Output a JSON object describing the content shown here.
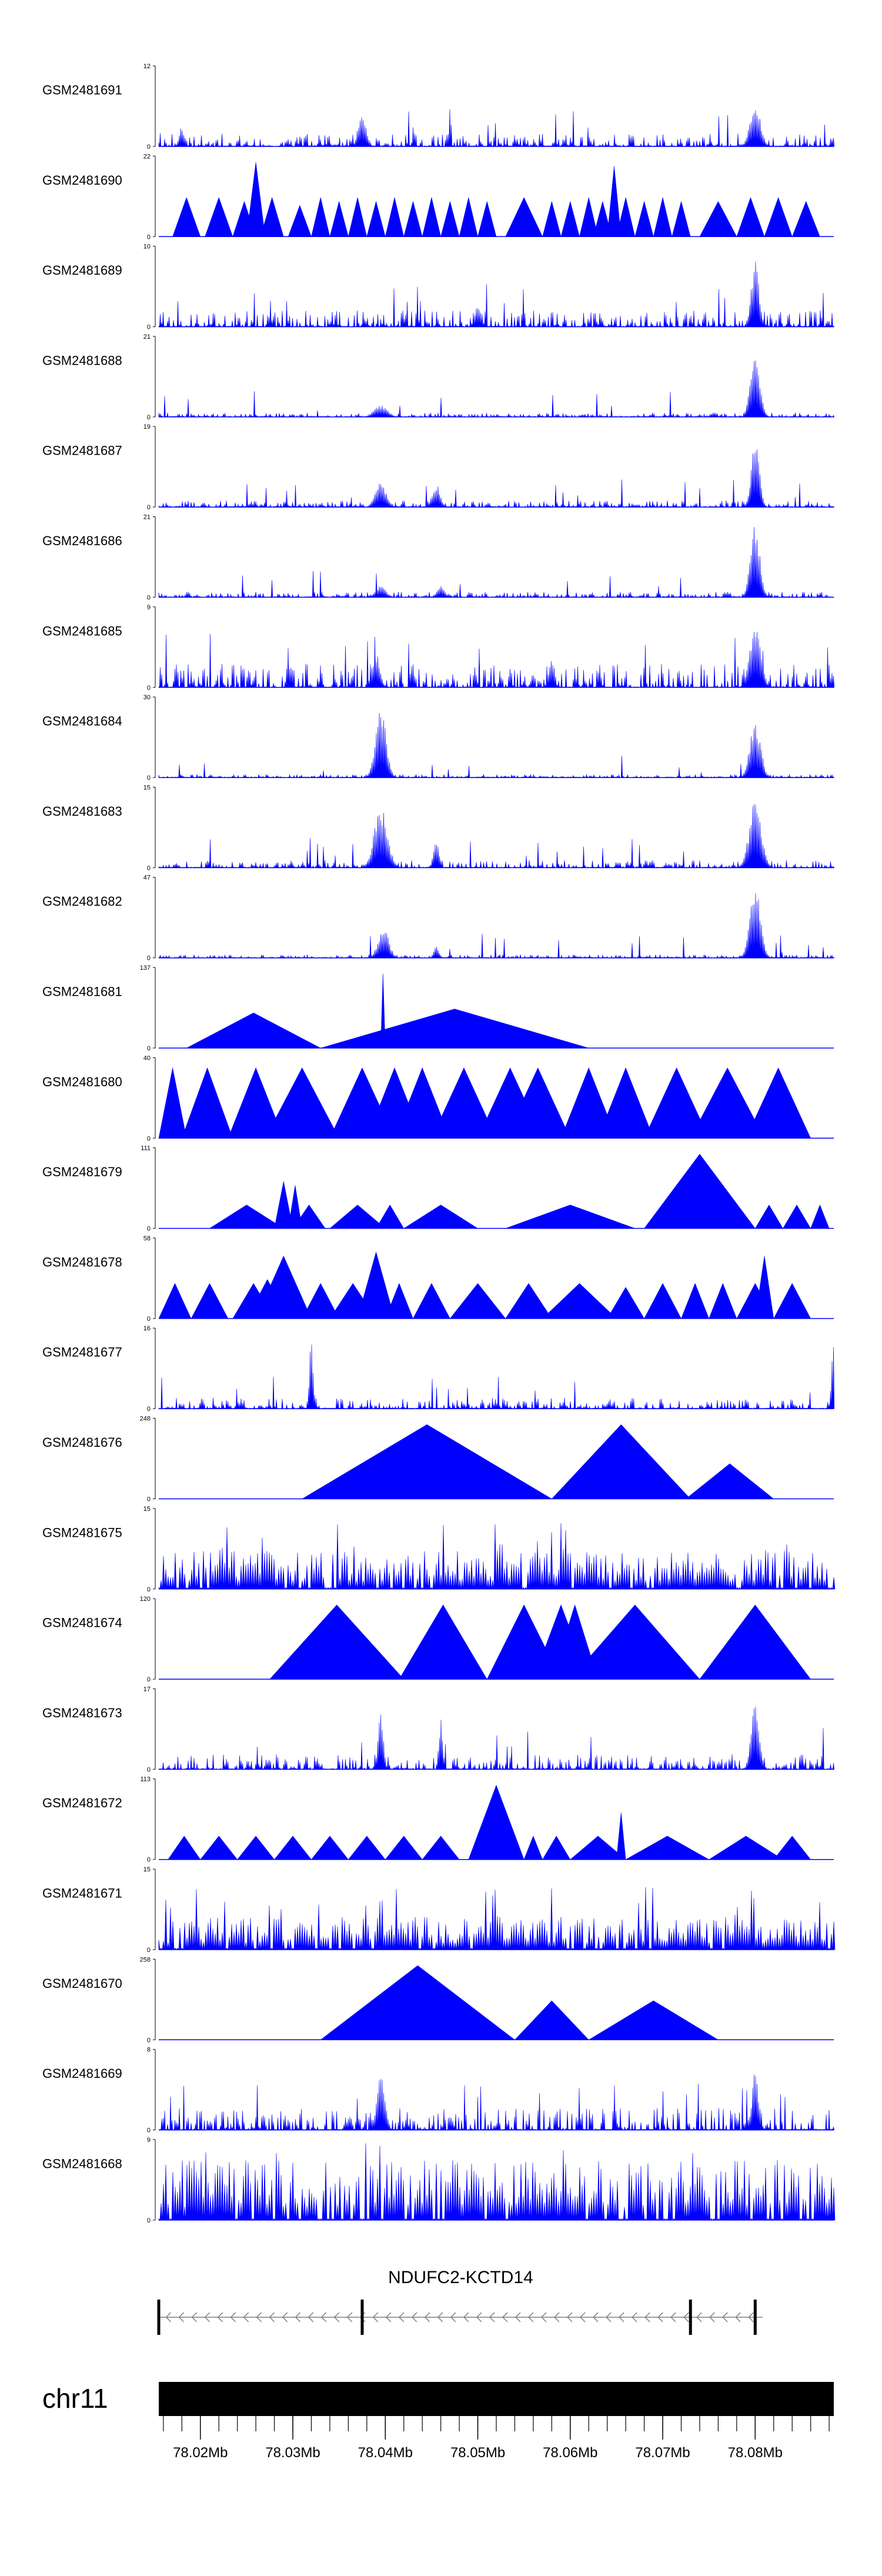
{
  "chart_data": {
    "type": "area",
    "title": "",
    "chromosome": "chr11",
    "xlabel": "",
    "ylabel": "",
    "x_range_mb": [
      78.0155,
      78.0885
    ],
    "x_ticks_mb": [
      78.02,
      78.03,
      78.04,
      78.05,
      78.06,
      78.07,
      78.08
    ],
    "x_tick_labels": [
      "78.02Mb",
      "78.03Mb",
      "78.04Mb",
      "78.05Mb",
      "78.06Mb",
      "78.07Mb",
      "78.08Mb"
    ],
    "minor_tick_step_mb": 0.002,
    "color": "#0000ff",
    "gene": {
      "name": "NDUFC2-KCTD14",
      "strand": "-",
      "start_mb": 78.0155,
      "end_mb": 78.0808,
      "exons_mb": [
        78.0155,
        78.0375,
        78.073,
        78.08
      ]
    },
    "tracks": [
      {
        "name": "GSM2481691",
        "ymax": 12,
        "pattern": "noise",
        "base": 0.12,
        "seed": 11,
        "peaks": [
          [
            78.0375,
            0.45,
            0.0006
          ],
          [
            78.08,
            0.55,
            0.0008
          ],
          [
            78.018,
            0.25,
            0.0004
          ]
        ]
      },
      {
        "name": "GSM2481690",
        "ymax": 22,
        "pattern": "tri",
        "seed": 12,
        "triangles": [
          [
            78.017,
            78.02,
            0.5
          ],
          [
            78.0205,
            78.0235,
            0.5
          ],
          [
            78.0235,
            78.026,
            0.45
          ],
          [
            78.025,
            78.027,
            0.95
          ],
          [
            78.0265,
            78.029,
            0.5
          ],
          [
            78.0295,
            78.032,
            0.4
          ],
          [
            78.032,
            78.034,
            0.5
          ],
          [
            78.034,
            78.036,
            0.45
          ],
          [
            78.036,
            78.038,
            0.5
          ],
          [
            78.038,
            78.04,
            0.45
          ],
          [
            78.04,
            78.042,
            0.5
          ],
          [
            78.042,
            78.044,
            0.45
          ],
          [
            78.044,
            78.046,
            0.5
          ],
          [
            78.046,
            78.048,
            0.45
          ],
          [
            78.048,
            78.05,
            0.5
          ],
          [
            78.05,
            78.052,
            0.45
          ],
          [
            78.053,
            78.057,
            0.5
          ],
          [
            78.057,
            78.059,
            0.45
          ],
          [
            78.059,
            78.061,
            0.45
          ],
          [
            78.061,
            78.063,
            0.5
          ],
          [
            78.0625,
            78.0645,
            0.45
          ],
          [
            78.064,
            78.0655,
            0.9
          ],
          [
            78.065,
            78.067,
            0.5
          ],
          [
            78.067,
            78.069,
            0.45
          ],
          [
            78.069,
            78.071,
            0.5
          ],
          [
            78.071,
            78.073,
            0.45
          ],
          [
            78.074,
            78.078,
            0.45
          ],
          [
            78.078,
            78.081,
            0.5
          ],
          [
            78.081,
            78.084,
            0.5
          ],
          [
            78.084,
            78.087,
            0.45
          ]
        ]
      },
      {
        "name": "GSM2481689",
        "ymax": 10,
        "pattern": "noise",
        "base": 0.15,
        "seed": 13,
        "peaks": [
          [
            78.08,
            0.85,
            0.0006
          ],
          [
            78.05,
            0.3,
            0.0005
          ]
        ]
      },
      {
        "name": "GSM2481688",
        "ymax": 21,
        "pattern": "noise",
        "base": 0.04,
        "seed": 14,
        "peaks": [
          [
            78.08,
            0.9,
            0.0007
          ],
          [
            78.0395,
            0.15,
            0.001
          ]
        ]
      },
      {
        "name": "GSM2481687",
        "ymax": 19,
        "pattern": "noise",
        "base": 0.06,
        "seed": 15,
        "peaks": [
          [
            78.08,
            0.9,
            0.0006
          ],
          [
            78.0395,
            0.35,
            0.0008
          ],
          [
            78.0455,
            0.3,
            0.0006
          ]
        ]
      },
      {
        "name": "GSM2481686",
        "ymax": 21,
        "pattern": "noise",
        "base": 0.05,
        "seed": 16,
        "peaks": [
          [
            78.08,
            0.95,
            0.0007
          ],
          [
            78.0395,
            0.15,
            0.0008
          ],
          [
            78.046,
            0.15,
            0.0006
          ]
        ]
      },
      {
        "name": "GSM2481685",
        "ymax": 9,
        "pattern": "noise",
        "base": 0.22,
        "seed": 17,
        "peaks": [
          [
            78.08,
            0.85,
            0.0008
          ],
          [
            78.039,
            0.45,
            0.0006
          ],
          [
            78.058,
            0.4,
            0.0004
          ]
        ]
      },
      {
        "name": "GSM2481684",
        "ymax": 30,
        "pattern": "noise",
        "base": 0.03,
        "seed": 18,
        "peaks": [
          [
            78.0395,
            0.95,
            0.0008
          ],
          [
            78.08,
            0.75,
            0.0008
          ]
        ]
      },
      {
        "name": "GSM2481683",
        "ymax": 15,
        "pattern": "noise",
        "base": 0.07,
        "seed": 19,
        "peaks": [
          [
            78.0395,
            0.8,
            0.001
          ],
          [
            78.08,
            0.9,
            0.0009
          ],
          [
            78.0455,
            0.4,
            0.0004
          ]
        ]
      },
      {
        "name": "GSM2481682",
        "ymax": 47,
        "pattern": "noise",
        "base": 0.03,
        "seed": 20,
        "peaks": [
          [
            78.08,
            0.95,
            0.0008
          ],
          [
            78.0398,
            0.4,
            0.0008
          ],
          [
            78.0455,
            0.15,
            0.0004
          ]
        ]
      },
      {
        "name": "GSM2481681",
        "ymax": 137,
        "pattern": "tri",
        "seed": 21,
        "triangles": [
          [
            78.0185,
            78.033,
            0.45
          ],
          [
            78.033,
            78.062,
            0.5
          ],
          [
            78.0395,
            78.04,
            0.95
          ]
        ]
      },
      {
        "name": "GSM2481680",
        "ymax": 40,
        "pattern": "tri",
        "seed": 22,
        "triangles": [
          [
            78.0155,
            78.0185,
            0.9
          ],
          [
            78.018,
            78.0235,
            0.9
          ],
          [
            78.023,
            78.029,
            0.9
          ],
          [
            78.027,
            78.035,
            0.9
          ],
          [
            78.034,
            78.041,
            0.9
          ],
          [
            78.038,
            78.044,
            0.9
          ],
          [
            78.041,
            78.047,
            0.9
          ],
          [
            78.045,
            78.052,
            0.9
          ],
          [
            78.05,
            78.057,
            0.9
          ],
          [
            78.053,
            78.06,
            0.9
          ],
          [
            78.059,
            78.065,
            0.9
          ],
          [
            78.063,
            78.069,
            0.9
          ],
          [
            78.068,
            78.075,
            0.9
          ],
          [
            78.073,
            78.081,
            0.9
          ],
          [
            78.079,
            78.086,
            0.9
          ]
        ]
      },
      {
        "name": "GSM2481679",
        "ymax": 111,
        "pattern": "tri",
        "seed": 23,
        "triangles": [
          [
            78.021,
            78.029,
            0.3
          ],
          [
            78.028,
            78.03,
            0.6
          ],
          [
            78.0295,
            78.031,
            0.55
          ],
          [
            78.03,
            78.0335,
            0.3
          ],
          [
            78.034,
            78.04,
            0.3
          ],
          [
            78.039,
            78.042,
            0.3
          ],
          [
            78.042,
            78.05,
            0.3
          ],
          [
            78.053,
            78.067,
            0.3
          ],
          [
            78.068,
            78.08,
            0.95
          ],
          [
            78.08,
            78.083,
            0.3
          ],
          [
            78.083,
            78.086,
            0.3
          ],
          [
            78.086,
            78.088,
            0.3
          ]
        ]
      },
      {
        "name": "GSM2481678",
        "ymax": 58,
        "pattern": "tri",
        "seed": 24,
        "triangles": [
          [
            78.0155,
            78.019,
            0.45
          ],
          [
            78.019,
            78.023,
            0.45
          ],
          [
            78.0235,
            78.028,
            0.45
          ],
          [
            78.025,
            78.0295,
            0.5
          ],
          [
            78.026,
            78.032,
            0.8
          ],
          [
            78.031,
            78.035,
            0.45
          ],
          [
            78.034,
            78.039,
            0.45
          ],
          [
            78.037,
            78.041,
            0.85
          ],
          [
            78.04,
            78.043,
            0.45
          ],
          [
            78.043,
            78.047,
            0.45
          ],
          [
            78.047,
            78.053,
            0.45
          ],
          [
            78.053,
            78.058,
            0.45
          ],
          [
            78.057,
            78.065,
            0.45
          ],
          [
            78.064,
            78.068,
            0.4
          ],
          [
            78.068,
            78.072,
            0.45
          ],
          [
            78.072,
            78.075,
            0.45
          ],
          [
            78.075,
            78.078,
            0.45
          ],
          [
            78.078,
            78.082,
            0.45
          ],
          [
            78.08,
            78.082,
            0.8
          ],
          [
            78.082,
            78.086,
            0.45
          ]
        ]
      },
      {
        "name": "GSM2481677",
        "ymax": 16,
        "pattern": "noise",
        "base": 0.1,
        "seed": 25,
        "peaks": [
          [
            78.032,
            0.9,
            0.0003
          ],
          [
            78.0885,
            0.95,
            0.0003
          ]
        ]
      },
      {
        "name": "GSM2481676",
        "ymax": 248,
        "pattern": "tri",
        "seed": 26,
        "triangles": [
          [
            78.031,
            78.058,
            0.95
          ],
          [
            78.058,
            78.073,
            0.95
          ],
          [
            78.0725,
            78.082,
            0.45
          ]
        ]
      },
      {
        "name": "GSM2481675",
        "ymax": 15,
        "pattern": "dense",
        "base": 0.35,
        "seed": 27
      },
      {
        "name": "GSM2481674",
        "ymax": 120,
        "pattern": "tri",
        "seed": 28,
        "triangles": [
          [
            78.0275,
            78.042,
            0.95
          ],
          [
            78.0415,
            78.051,
            0.95
          ],
          [
            78.051,
            78.059,
            0.95
          ],
          [
            78.056,
            78.062,
            0.95
          ],
          [
            78.058,
            78.063,
            0.95
          ],
          [
            78.06,
            78.074,
            0.95
          ],
          [
            78.074,
            78.086,
            0.95
          ]
        ]
      },
      {
        "name": "GSM2481673",
        "ymax": 17,
        "pattern": "noise",
        "base": 0.14,
        "seed": 29,
        "peaks": [
          [
            78.0395,
            0.75,
            0.0004
          ],
          [
            78.046,
            0.7,
            0.0003
          ],
          [
            78.08,
            0.9,
            0.0006
          ]
        ]
      },
      {
        "name": "GSM2481672",
        "ymax": 113,
        "pattern": "tri",
        "seed": 30,
        "triangles": [
          [
            78.0165,
            78.02,
            0.3
          ],
          [
            78.02,
            78.024,
            0.3
          ],
          [
            78.024,
            78.028,
            0.3
          ],
          [
            78.028,
            78.032,
            0.3
          ],
          [
            78.032,
            78.036,
            0.3
          ],
          [
            78.036,
            78.04,
            0.3
          ],
          [
            78.04,
            78.044,
            0.3
          ],
          [
            78.044,
            78.048,
            0.3
          ],
          [
            78.049,
            78.055,
            0.95
          ],
          [
            78.055,
            78.057,
            0.3
          ],
          [
            78.057,
            78.06,
            0.3
          ],
          [
            78.06,
            78.066,
            0.3
          ],
          [
            78.065,
            78.066,
            0.6
          ],
          [
            78.066,
            78.075,
            0.3
          ],
          [
            78.075,
            78.083,
            0.3
          ],
          [
            78.082,
            78.086,
            0.3
          ]
        ]
      },
      {
        "name": "GSM2481671",
        "ymax": 15,
        "pattern": "dense",
        "base": 0.3,
        "seed": 31,
        "peaks": [
          [
            78.0395,
            0.85,
            0.0003
          ],
          [
            78.078,
            0.7,
            0.0003
          ]
        ]
      },
      {
        "name": "GSM2481670",
        "ymax": 258,
        "pattern": "tri",
        "seed": 32,
        "triangles": [
          [
            78.033,
            78.054,
            0.95
          ],
          [
            78.054,
            78.062,
            0.5
          ],
          [
            78.062,
            78.076,
            0.5
          ]
        ]
      },
      {
        "name": "GSM2481669",
        "ymax": 8,
        "pattern": "noise",
        "base": 0.2,
        "seed": 33,
        "peaks": [
          [
            78.0395,
            0.75,
            0.0006
          ],
          [
            78.08,
            0.85,
            0.0005
          ]
        ]
      },
      {
        "name": "GSM2481668",
        "ymax": 9,
        "pattern": "dense",
        "base": 0.55,
        "seed": 34
      }
    ]
  }
}
